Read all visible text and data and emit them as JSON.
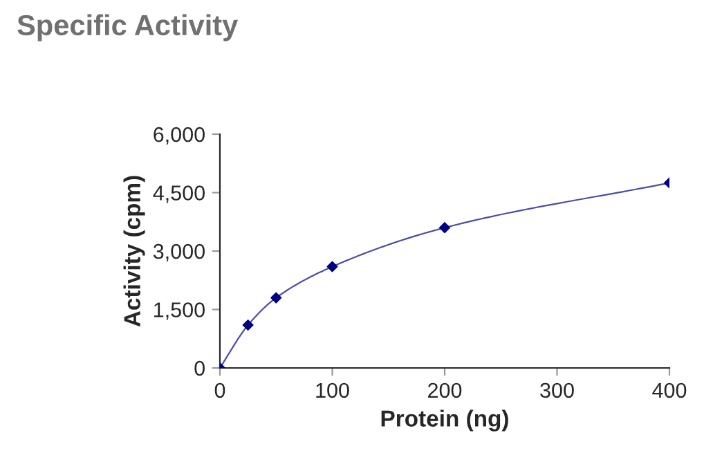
{
  "chart_data": {
    "type": "line",
    "title": "Specific Activity",
    "xlabel": "Protein (ng)",
    "ylabel": "Activity (cpm)",
    "x": [
      0,
      25,
      50,
      100,
      200,
      400
    ],
    "series": [
      {
        "color": "#000080",
        "values": [
          0,
          1100,
          1800,
          2600,
          3600,
          4750
        ]
      }
    ],
    "xlim": [
      0,
      400
    ],
    "xticks": [
      0,
      100,
      200,
      300,
      400
    ],
    "ylim": [
      0,
      6000
    ],
    "yticks": [
      0,
      {
        "value": 1500,
        "label": "1,500"
      },
      {
        "value": 3000,
        "label": "3,000"
      },
      {
        "value": 4500,
        "label": "4,500"
      },
      {
        "value": 6000,
        "label": "6,000"
      }
    ],
    "grid": false,
    "legend": false,
    "marker": "diamond",
    "line_style": "solid"
  }
}
